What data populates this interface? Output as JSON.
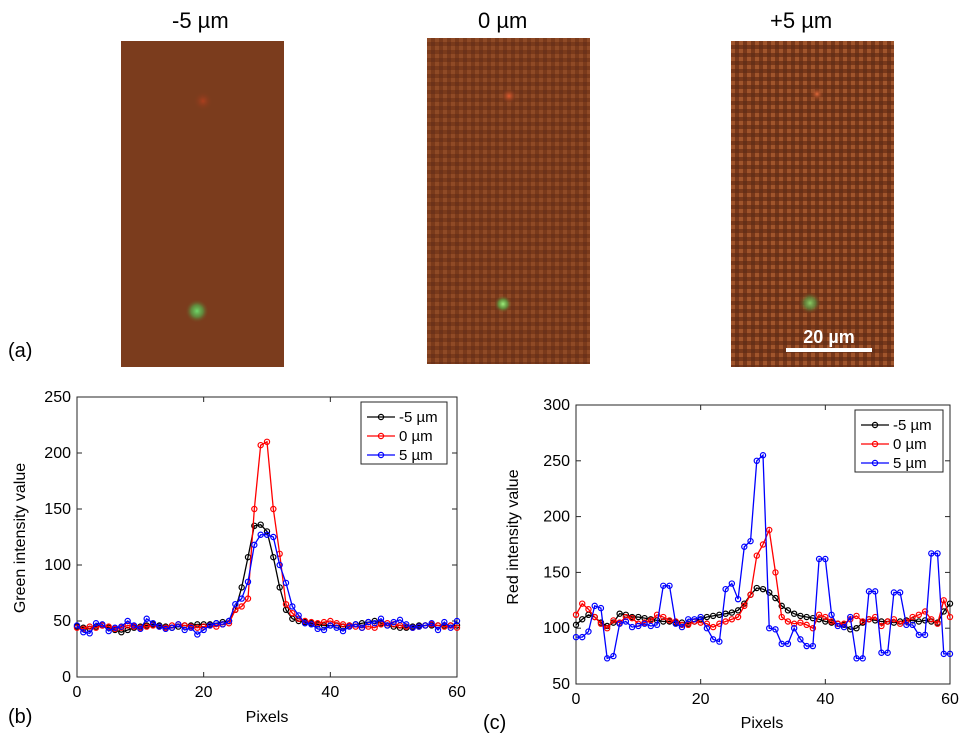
{
  "figure": {
    "panel_a_label": "(a)",
    "panel_b_label": "(b)",
    "panel_c_label": "(c)"
  },
  "micrographs": [
    {
      "title": "-5 µm",
      "spots": {
        "red": "faint-top",
        "green": "bottom"
      }
    },
    {
      "title": "0 µm",
      "spots": {
        "red": "top",
        "green": "bottom"
      }
    },
    {
      "title": "+5 µm",
      "spots": {
        "red": "top",
        "green": "bottom"
      },
      "scale_bar": "20 µm"
    }
  ],
  "colors": {
    "tissue": "#7a3a1c",
    "series_-5": "#000000",
    "series_0": "#ff0000",
    "series_5": "#0000ff"
  },
  "chart_data": [
    {
      "type": "line",
      "xlabel": "Pixels",
      "ylabel": "Green intensity value",
      "xlim": [
        0,
        60
      ],
      "ylim": [
        0,
        250
      ],
      "xticks": [
        0,
        20,
        40,
        60
      ],
      "yticks": [
        0,
        50,
        100,
        150,
        200,
        250
      ],
      "legend_position": "top-right",
      "series": [
        {
          "name": "-5 µm",
          "color": "#000000",
          "x": [
            0,
            1,
            2,
            3,
            4,
            5,
            6,
            7,
            8,
            9,
            10,
            11,
            12,
            13,
            14,
            15,
            16,
            17,
            18,
            19,
            20,
            21,
            22,
            23,
            24,
            25,
            26,
            27,
            28,
            29,
            30,
            31,
            32,
            33,
            34,
            35,
            36,
            37,
            38,
            39,
            40,
            41,
            42,
            43,
            44,
            45,
            46,
            47,
            48,
            49,
            50,
            51,
            52,
            53,
            54,
            55,
            56,
            57,
            58,
            59,
            60
          ],
          "y": [
            45,
            44,
            43,
            45,
            46,
            44,
            42,
            40,
            42,
            44,
            45,
            46,
            47,
            46,
            45,
            44,
            45,
            46,
            46,
            47,
            47,
            47,
            48,
            49,
            50,
            60,
            80,
            107,
            135,
            136,
            130,
            107,
            80,
            60,
            52,
            50,
            49,
            48,
            47,
            46,
            46,
            46,
            45,
            46,
            47,
            48,
            49,
            50,
            48,
            46,
            45,
            44,
            44,
            45,
            46,
            46,
            46,
            46,
            46,
            46,
            46
          ]
        },
        {
          "name": "0 µm",
          "color": "#ff0000",
          "x": [
            0,
            1,
            2,
            3,
            4,
            5,
            6,
            7,
            8,
            9,
            10,
            11,
            12,
            13,
            14,
            15,
            16,
            17,
            18,
            19,
            20,
            21,
            22,
            23,
            24,
            25,
            26,
            27,
            28,
            29,
            30,
            31,
            32,
            33,
            34,
            35,
            36,
            37,
            38,
            39,
            40,
            41,
            42,
            43,
            44,
            45,
            46,
            47,
            48,
            49,
            50,
            51,
            52,
            53,
            54,
            55,
            56,
            57,
            58,
            59,
            60
          ],
          "y": [
            44,
            43,
            45,
            44,
            46,
            45,
            43,
            44,
            46,
            45,
            44,
            45,
            46,
            45,
            44,
            46,
            47,
            46,
            45,
            44,
            45,
            46,
            45,
            47,
            48,
            60,
            63,
            70,
            150,
            207,
            210,
            150,
            110,
            65,
            57,
            52,
            50,
            49,
            48,
            49,
            50,
            48,
            47,
            46,
            45,
            44,
            45,
            44,
            47,
            48,
            47,
            46,
            45,
            44,
            45,
            46,
            47,
            46,
            45,
            46,
            44
          ]
        },
        {
          "name": "5 µm",
          "color": "#0000ff",
          "x": [
            0,
            1,
            2,
            3,
            4,
            5,
            6,
            7,
            8,
            9,
            10,
            11,
            12,
            13,
            14,
            15,
            16,
            17,
            18,
            19,
            20,
            21,
            22,
            23,
            24,
            25,
            26,
            27,
            28,
            29,
            30,
            31,
            32,
            33,
            34,
            35,
            36,
            37,
            38,
            39,
            40,
            41,
            42,
            43,
            44,
            45,
            46,
            47,
            48,
            49,
            50,
            51,
            52,
            53,
            54,
            55,
            56,
            57,
            58,
            59,
            60
          ],
          "y": [
            46,
            40,
            39,
            48,
            47,
            41,
            44,
            45,
            50,
            46,
            43,
            52,
            48,
            45,
            43,
            44,
            47,
            42,
            44,
            38,
            42,
            46,
            48,
            47,
            50,
            65,
            70,
            85,
            118,
            127,
            127,
            125,
            100,
            84,
            63,
            55,
            48,
            47,
            43,
            42,
            46,
            44,
            41,
            45,
            47,
            44,
            49,
            48,
            52,
            46,
            49,
            51,
            47,
            44,
            45,
            46,
            48,
            42,
            49,
            44,
            50
          ]
        }
      ]
    },
    {
      "type": "line",
      "xlabel": "Pixels",
      "ylabel": "Red intensity value",
      "xlim": [
        0,
        60
      ],
      "ylim": [
        50,
        300
      ],
      "xticks": [
        0,
        20,
        40,
        60
      ],
      "yticks": [
        50,
        100,
        150,
        200,
        250,
        300
      ],
      "legend_position": "top-right",
      "series": [
        {
          "name": "-5 µm",
          "color": "#000000",
          "x": [
            0,
            1,
            2,
            3,
            4,
            5,
            6,
            7,
            8,
            9,
            10,
            11,
            12,
            13,
            14,
            15,
            16,
            17,
            18,
            19,
            20,
            21,
            22,
            23,
            24,
            25,
            26,
            27,
            28,
            29,
            30,
            31,
            32,
            33,
            34,
            35,
            36,
            37,
            38,
            39,
            40,
            41,
            42,
            43,
            44,
            45,
            46,
            47,
            48,
            49,
            50,
            51,
            52,
            53,
            54,
            55,
            56,
            57,
            58,
            59,
            60
          ],
          "y": [
            103,
            108,
            112,
            110,
            105,
            102,
            105,
            113,
            112,
            110,
            110,
            109,
            108,
            107,
            106,
            106,
            105,
            105,
            104,
            106,
            108,
            110,
            111,
            112,
            113,
            114,
            116,
            122,
            130,
            136,
            135,
            132,
            127,
            120,
            116,
            113,
            111,
            110,
            109,
            108,
            106,
            105,
            104,
            103,
            99,
            100,
            105,
            108,
            107,
            106,
            106,
            105,
            106,
            107,
            107,
            106,
            107,
            106,
            105,
            115,
            122
          ]
        },
        {
          "name": "0 µm",
          "color": "#ff0000",
          "x": [
            0,
            1,
            2,
            3,
            4,
            5,
            6,
            7,
            8,
            9,
            10,
            11,
            12,
            13,
            14,
            15,
            16,
            17,
            18,
            19,
            20,
            21,
            22,
            23,
            24,
            25,
            26,
            27,
            28,
            29,
            30,
            31,
            32,
            33,
            34,
            35,
            36,
            37,
            38,
            39,
            40,
            41,
            42,
            43,
            44,
            45,
            46,
            47,
            48,
            49,
            50,
            51,
            52,
            53,
            54,
            55,
            56,
            57,
            58,
            59,
            60
          ],
          "y": [
            112,
            122,
            117,
            110,
            104,
            100,
            107,
            105,
            110,
            109,
            104,
            105,
            107,
            112,
            110,
            107,
            106,
            103,
            103,
            106,
            105,
            104,
            101,
            104,
            106,
            108,
            110,
            120,
            130,
            165,
            175,
            188,
            150,
            110,
            106,
            104,
            105,
            103,
            100,
            112,
            110,
            106,
            104,
            104,
            108,
            111,
            106,
            108,
            110,
            102,
            106,
            108,
            104,
            106,
            110,
            112,
            115,
            108,
            104,
            125,
            110
          ]
        },
        {
          "name": "5 µm",
          "color": "#0000ff",
          "x": [
            0,
            1,
            2,
            3,
            4,
            5,
            6,
            7,
            8,
            9,
            10,
            11,
            12,
            13,
            14,
            15,
            16,
            17,
            18,
            19,
            20,
            21,
            22,
            23,
            24,
            25,
            26,
            27,
            28,
            29,
            30,
            31,
            32,
            33,
            34,
            35,
            36,
            37,
            38,
            39,
            40,
            41,
            42,
            43,
            44,
            45,
            46,
            47,
            48,
            49,
            50,
            51,
            52,
            53,
            54,
            55,
            56,
            57,
            58,
            59,
            60
          ],
          "y": [
            92,
            92,
            97,
            120,
            118,
            73,
            75,
            104,
            106,
            101,
            102,
            104,
            102,
            103,
            138,
            138,
            104,
            101,
            108,
            108,
            110,
            100,
            90,
            88,
            135,
            140,
            126,
            173,
            178,
            250,
            255,
            100,
            99,
            86,
            86,
            100,
            90,
            84,
            84,
            162,
            162,
            112,
            102,
            101,
            110,
            73,
            73,
            133,
            133,
            78,
            78,
            132,
            132,
            103,
            103,
            94,
            94,
            167,
            167,
            77,
            77
          ]
        }
      ]
    }
  ]
}
